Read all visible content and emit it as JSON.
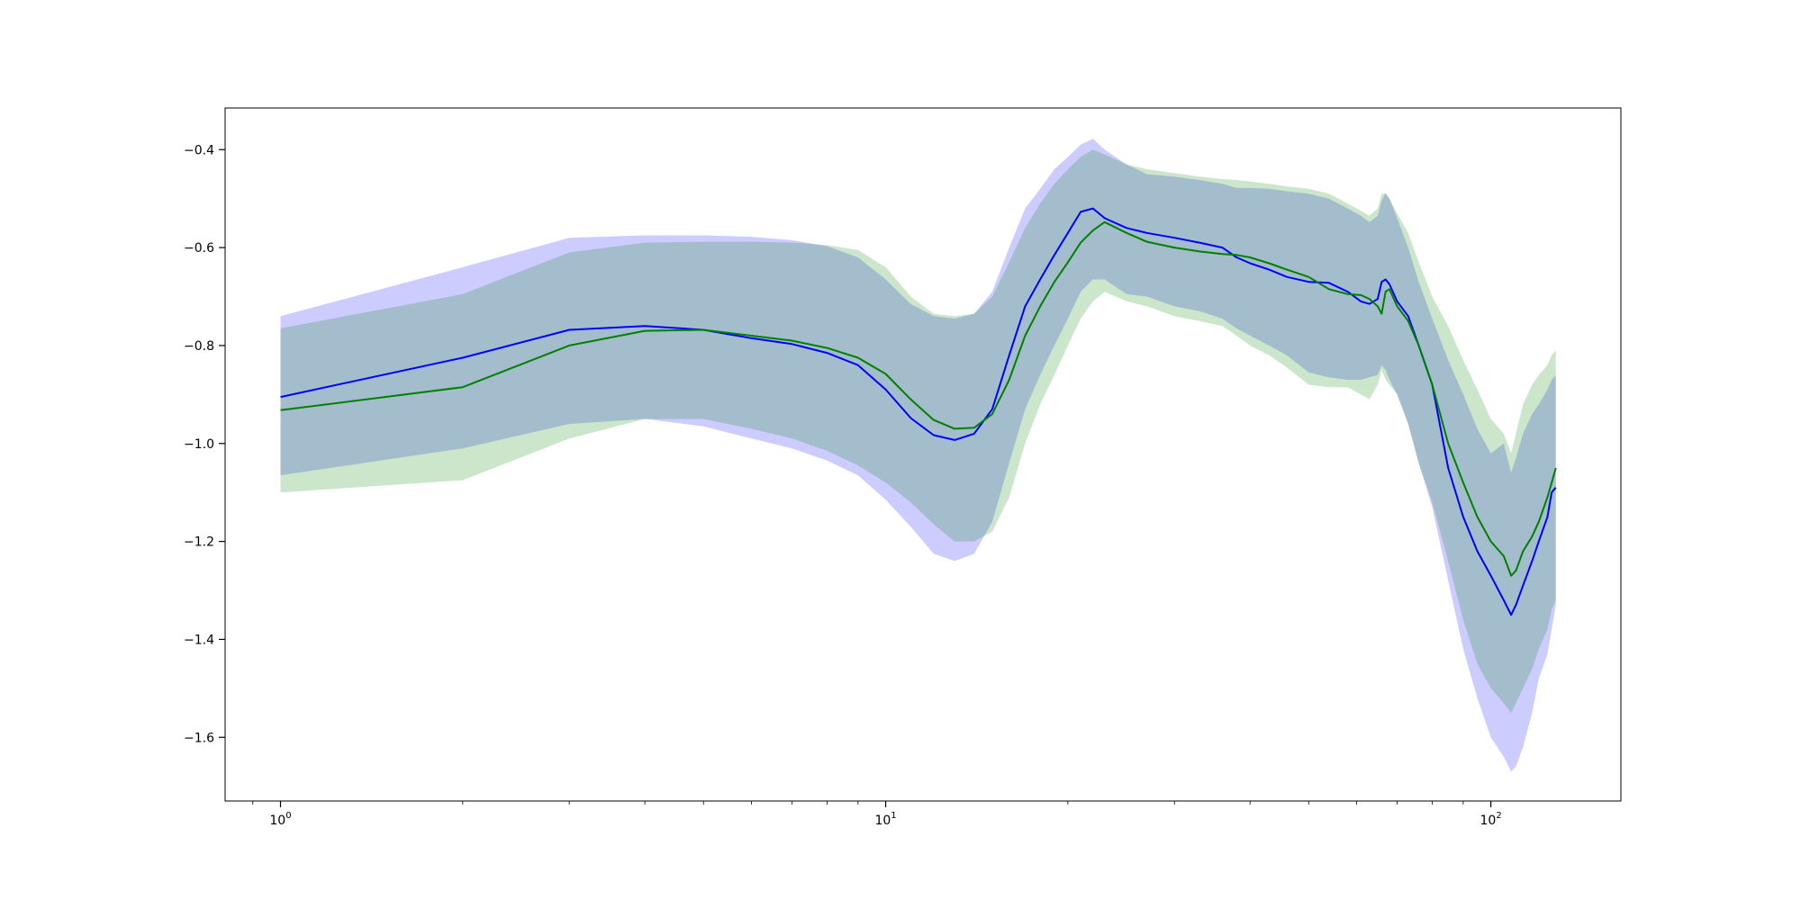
{
  "chart_data": {
    "type": "line",
    "title": "",
    "xlabel": "",
    "ylabel": "",
    "xscale": "log",
    "xlim": [
      0.81,
      164
    ],
    "ylim": [
      -1.73,
      -0.315
    ],
    "grid": false,
    "legend": "none",
    "x_ticks": [
      {
        "base": "10",
        "exp": "0",
        "value": 1
      },
      {
        "base": "10",
        "exp": "1",
        "value": 10
      },
      {
        "base": "10",
        "exp": "2",
        "value": 100
      }
    ],
    "y_ticks": [
      {
        "label": "−0.4",
        "value": -0.4
      },
      {
        "label": "−0.6",
        "value": -0.6
      },
      {
        "label": "−0.8",
        "value": -0.8
      },
      {
        "label": "−1.0",
        "value": -1.0
      },
      {
        "label": "−1.2",
        "value": -1.2
      },
      {
        "label": "−1.4",
        "value": -1.4
      },
      {
        "label": "−1.6",
        "value": -1.6
      }
    ],
    "series": [
      {
        "color": "#0000ff",
        "band_color": "#0000ff",
        "band_opacity": 0.2,
        "x": [
          1,
          2,
          3,
          4,
          5,
          6,
          7,
          8,
          9,
          10,
          11,
          12,
          13,
          14,
          15,
          16,
          17,
          18,
          19,
          20,
          21,
          22,
          23,
          25,
          27,
          30,
          33,
          36,
          38,
          40,
          43,
          46,
          50,
          54,
          58,
          61,
          63,
          65,
          66,
          67,
          68,
          70,
          73,
          76,
          80,
          85,
          90,
          95,
          100,
          105,
          108,
          110,
          113,
          117,
          120,
          124,
          126,
          128
        ],
        "y": [
          -0.905,
          -0.825,
          -0.768,
          -0.76,
          -0.768,
          -0.785,
          -0.797,
          -0.815,
          -0.84,
          -0.89,
          -0.948,
          -0.983,
          -0.993,
          -0.98,
          -0.93,
          -0.82,
          -0.72,
          -0.665,
          -0.615,
          -0.57,
          -0.527,
          -0.52,
          -0.54,
          -0.56,
          -0.57,
          -0.58,
          -0.59,
          -0.6,
          -0.62,
          -0.632,
          -0.645,
          -0.66,
          -0.67,
          -0.672,
          -0.69,
          -0.71,
          -0.715,
          -0.705,
          -0.67,
          -0.665,
          -0.675,
          -0.71,
          -0.74,
          -0.8,
          -0.88,
          -1.05,
          -1.15,
          -1.22,
          -1.27,
          -1.32,
          -1.35,
          -1.33,
          -1.29,
          -1.24,
          -1.2,
          -1.15,
          -1.1,
          -1.09
        ],
        "upper": [
          -0.74,
          -0.64,
          -0.58,
          -0.575,
          -0.575,
          -0.578,
          -0.585,
          -0.597,
          -0.62,
          -0.665,
          -0.715,
          -0.74,
          -0.745,
          -0.735,
          -0.69,
          -0.6,
          -0.52,
          -0.48,
          -0.44,
          -0.415,
          -0.39,
          -0.378,
          -0.4,
          -0.43,
          -0.45,
          -0.455,
          -0.462,
          -0.47,
          -0.478,
          -0.478,
          -0.48,
          -0.485,
          -0.49,
          -0.5,
          -0.52,
          -0.535,
          -0.548,
          -0.535,
          -0.505,
          -0.488,
          -0.5,
          -0.54,
          -0.6,
          -0.67,
          -0.745,
          -0.83,
          -0.9,
          -0.97,
          -1.02,
          -1.0,
          -1.06,
          -1.03,
          -0.98,
          -0.94,
          -0.92,
          -0.89,
          -0.87,
          -0.86
        ],
        "lower": [
          -1.065,
          -1.01,
          -0.96,
          -0.95,
          -0.965,
          -0.99,
          -1.01,
          -1.035,
          -1.065,
          -1.115,
          -1.17,
          -1.225,
          -1.24,
          -1.225,
          -1.16,
          -1.04,
          -0.93,
          -0.86,
          -0.8,
          -0.745,
          -0.69,
          -0.665,
          -0.665,
          -0.695,
          -0.7,
          -0.72,
          -0.73,
          -0.745,
          -0.765,
          -0.78,
          -0.8,
          -0.82,
          -0.855,
          -0.865,
          -0.87,
          -0.87,
          -0.865,
          -0.86,
          -0.84,
          -0.85,
          -0.87,
          -0.9,
          -0.96,
          -1.04,
          -1.13,
          -1.28,
          -1.42,
          -1.52,
          -1.6,
          -1.64,
          -1.67,
          -1.66,
          -1.62,
          -1.55,
          -1.48,
          -1.43,
          -1.38,
          -1.33
        ]
      },
      {
        "color": "#008000",
        "band_color": "#008000",
        "band_opacity": 0.2,
        "x": [
          1,
          2,
          3,
          4,
          5,
          6,
          7,
          8,
          9,
          10,
          11,
          12,
          13,
          14,
          15,
          16,
          17,
          18,
          19,
          20,
          21,
          22,
          23,
          25,
          27,
          30,
          33,
          36,
          38,
          40,
          43,
          46,
          50,
          54,
          58,
          61,
          63,
          65,
          66,
          67,
          68,
          70,
          73,
          76,
          80,
          85,
          90,
          95,
          100,
          105,
          108,
          110,
          113,
          117,
          120,
          124,
          126,
          128
        ],
        "y": [
          -0.932,
          -0.885,
          -0.8,
          -0.77,
          -0.768,
          -0.78,
          -0.79,
          -0.805,
          -0.825,
          -0.858,
          -0.91,
          -0.952,
          -0.97,
          -0.968,
          -0.94,
          -0.87,
          -0.78,
          -0.72,
          -0.67,
          -0.63,
          -0.59,
          -0.565,
          -0.548,
          -0.57,
          -0.588,
          -0.6,
          -0.608,
          -0.613,
          -0.615,
          -0.62,
          -0.632,
          -0.645,
          -0.66,
          -0.685,
          -0.695,
          -0.697,
          -0.705,
          -0.72,
          -0.735,
          -0.69,
          -0.685,
          -0.72,
          -0.75,
          -0.8,
          -0.88,
          -1.0,
          -1.08,
          -1.15,
          -1.2,
          -1.23,
          -1.27,
          -1.26,
          -1.22,
          -1.19,
          -1.16,
          -1.11,
          -1.08,
          -1.05
        ],
        "upper": [
          -0.765,
          -0.695,
          -0.61,
          -0.59,
          -0.588,
          -0.588,
          -0.59,
          -0.595,
          -0.605,
          -0.64,
          -0.7,
          -0.735,
          -0.74,
          -0.735,
          -0.7,
          -0.63,
          -0.56,
          -0.51,
          -0.47,
          -0.44,
          -0.415,
          -0.4,
          -0.41,
          -0.43,
          -0.44,
          -0.448,
          -0.455,
          -0.46,
          -0.462,
          -0.465,
          -0.47,
          -0.475,
          -0.48,
          -0.49,
          -0.51,
          -0.525,
          -0.535,
          -0.52,
          -0.49,
          -0.49,
          -0.5,
          -0.53,
          -0.57,
          -0.63,
          -0.7,
          -0.76,
          -0.83,
          -0.89,
          -0.95,
          -0.98,
          -1.02,
          -0.98,
          -0.92,
          -0.88,
          -0.86,
          -0.84,
          -0.82,
          -0.81
        ],
        "lower": [
          -1.1,
          -1.075,
          -0.99,
          -0.95,
          -0.95,
          -0.97,
          -0.99,
          -1.015,
          -1.045,
          -1.08,
          -1.12,
          -1.165,
          -1.2,
          -1.2,
          -1.18,
          -1.11,
          -1.0,
          -0.92,
          -0.86,
          -0.8,
          -0.745,
          -0.71,
          -0.69,
          -0.71,
          -0.72,
          -0.74,
          -0.75,
          -0.76,
          -0.78,
          -0.8,
          -0.82,
          -0.845,
          -0.88,
          -0.885,
          -0.885,
          -0.9,
          -0.91,
          -0.88,
          -0.85,
          -0.87,
          -0.88,
          -0.9,
          -0.96,
          -1.04,
          -1.12,
          -1.24,
          -1.36,
          -1.45,
          -1.5,
          -1.53,
          -1.55,
          -1.53,
          -1.5,
          -1.46,
          -1.42,
          -1.38,
          -1.34,
          -1.32
        ]
      }
    ]
  }
}
